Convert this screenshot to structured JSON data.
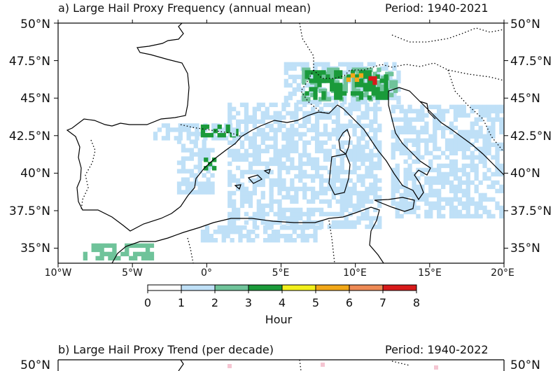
{
  "panel_a": {
    "title": "a) Large Hail Proxy Frequency (annual mean)",
    "period": "Period: 1940-2021",
    "lat_labels": [
      "50°N",
      "47.5°N",
      "45°N",
      "42.5°N",
      "40°N",
      "37.5°N",
      "35°N"
    ],
    "lon_labels": [
      "10°W",
      "5°W",
      "0°",
      "5°E",
      "10°E",
      "15°E",
      "20°E"
    ]
  },
  "colorbar": {
    "ticks": [
      "0",
      "1",
      "2",
      "3",
      "4",
      "5",
      "6",
      "7",
      "8"
    ],
    "label": "Hour",
    "colors": [
      "#ffffff",
      "#bfe0f7",
      "#6fc39a",
      "#1a9a3a",
      "#f2ef1c",
      "#f2a818",
      "#ee8a55",
      "#d81a1a"
    ]
  },
  "panel_b": {
    "title": "b) Large Hail Proxy Trend (per decade)",
    "period": "Period: 1940-2022",
    "lat_label_left": "50°N",
    "lat_label_right": "50°N"
  },
  "chart_data": {
    "type": "heatmap",
    "title": "a) Large Hail Proxy Frequency (annual mean)",
    "xlim": [
      -10,
      20
    ],
    "ylim": [
      34,
      50
    ],
    "cbar_range": [
      0,
      8
    ],
    "cbar_label": "Hour",
    "regions": [
      {
        "value": 2,
        "lon": [
          5.2,
          12.8
        ],
        "lat": [
          44.6,
          47.2
        ]
      },
      {
        "value": 3,
        "lon": [
          6.4,
          12.6
        ],
        "lat": [
          44.8,
          46.9
        ]
      },
      {
        "value": 4,
        "lon": [
          6.6,
          12.0
        ],
        "lat": [
          44.9,
          46.8
        ]
      },
      {
        "value": 6,
        "lon": [
          9.4,
          10.4
        ],
        "lat": [
          46.1,
          46.5
        ]
      },
      {
        "value": 8,
        "lon": [
          10.6,
          11.2
        ],
        "lat": [
          45.9,
          46.4
        ]
      },
      {
        "value": 2,
        "lon": [
          -3.6,
          2.2
        ],
        "lat": [
          42.2,
          43.1
        ]
      },
      {
        "value": 4,
        "lon": [
          -0.4,
          2.0
        ],
        "lat": [
          42.4,
          43.0
        ]
      },
      {
        "value": 2,
        "lon": [
          -2.0,
          0.4
        ],
        "lat": [
          38.6,
          42.2
        ]
      },
      {
        "value": 4,
        "lon": [
          -0.2,
          0.4
        ],
        "lat": [
          40.2,
          40.8
        ]
      },
      {
        "value": 2,
        "lon": [
          -0.4,
          7.6
        ],
        "lat": [
          35.4,
          36.3
        ]
      },
      {
        "value": 3,
        "lon": [
          -8.6,
          -3.6
        ],
        "lat": [
          34.2,
          35.1
        ]
      },
      {
        "value": 2,
        "lon": [
          1.4,
          11.6
        ],
        "lat": [
          36.3,
          44.6
        ]
      },
      {
        "value": 2,
        "lon": [
          12.4,
          20.0
        ],
        "lat": [
          37.0,
          44.5
        ]
      }
    ]
  }
}
